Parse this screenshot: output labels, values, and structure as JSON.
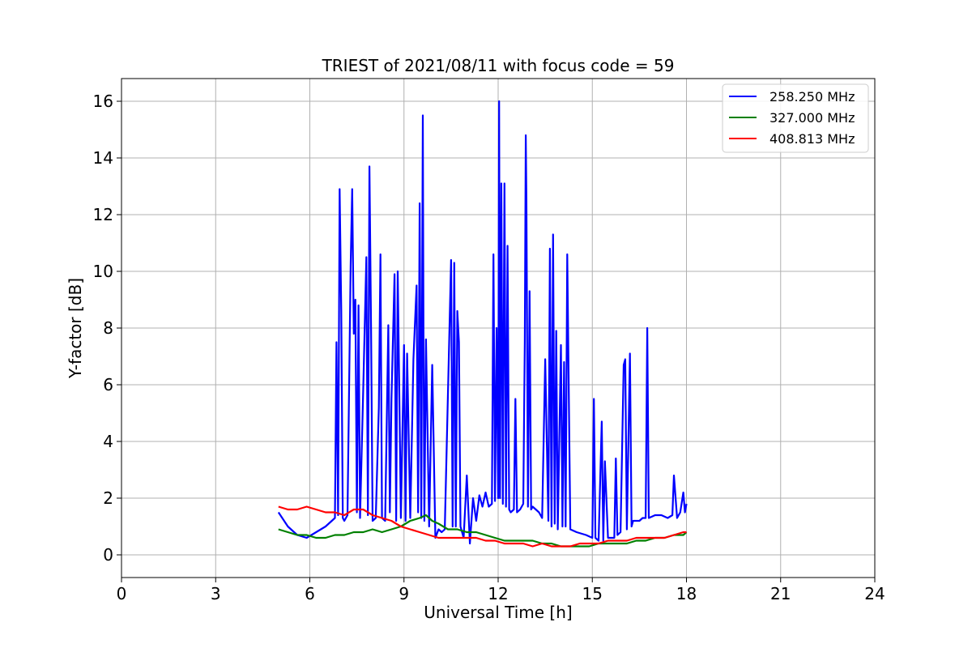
{
  "chart_data": {
    "type": "line",
    "title": "TRIEST of 2021/08/11 with focus code = 59",
    "xlabel": "Universal Time [h]",
    "ylabel": "Y-factor [dB]",
    "xlim": [
      0,
      24
    ],
    "ylim": [
      -0.8,
      16.8
    ],
    "xticks": [
      0,
      3,
      6,
      9,
      12,
      15,
      18,
      21,
      24
    ],
    "yticks": [
      0,
      2,
      4,
      6,
      8,
      10,
      12,
      14,
      16
    ],
    "grid": true,
    "legend_position": "top-right",
    "series": [
      {
        "name": "258.250 MHz",
        "color": "#0000ff",
        "x": [
          5.0,
          5.3,
          5.6,
          5.9,
          6.2,
          6.5,
          6.8,
          6.85,
          6.9,
          6.95,
          7.0,
          7.05,
          7.1,
          7.2,
          7.3,
          7.35,
          7.4,
          7.45,
          7.5,
          7.55,
          7.6,
          7.7,
          7.8,
          7.85,
          7.9,
          7.95,
          8.0,
          8.1,
          8.2,
          8.25,
          8.3,
          8.4,
          8.5,
          8.55,
          8.6,
          8.7,
          8.75,
          8.8,
          8.85,
          8.9,
          9.0,
          9.05,
          9.1,
          9.2,
          9.3,
          9.4,
          9.45,
          9.5,
          9.55,
          9.6,
          9.62,
          9.65,
          9.7,
          9.8,
          9.9,
          10.0,
          10.1,
          10.2,
          10.3,
          10.5,
          10.55,
          10.6,
          10.65,
          10.7,
          10.75,
          10.8,
          10.9,
          11.0,
          11.1,
          11.2,
          11.3,
          11.4,
          11.5,
          11.6,
          11.7,
          11.8,
          11.85,
          11.9,
          11.95,
          12.0,
          12.03,
          12.06,
          12.1,
          12.15,
          12.2,
          12.25,
          12.3,
          12.35,
          12.4,
          12.5,
          12.55,
          12.6,
          12.7,
          12.8,
          12.85,
          12.88,
          12.9,
          12.95,
          13.0,
          13.05,
          13.1,
          13.2,
          13.3,
          13.4,
          13.5,
          13.6,
          13.65,
          13.7,
          13.75,
          13.8,
          13.85,
          13.9,
          14.0,
          14.05,
          14.1,
          14.15,
          14.2,
          14.3,
          14.5,
          14.8,
          15.0,
          15.05,
          15.1,
          15.2,
          15.3,
          15.35,
          15.4,
          15.5,
          15.6,
          15.7,
          15.75,
          15.8,
          15.9,
          16.0,
          16.05,
          16.1,
          16.2,
          16.25,
          16.3,
          16.5,
          16.6,
          16.7,
          16.75,
          16.8,
          17.0,
          17.2,
          17.4,
          17.55,
          17.6,
          17.7,
          17.8,
          17.9,
          17.95,
          18.0
        ],
        "y": [
          1.5,
          1.0,
          0.7,
          0.6,
          0.8,
          1.0,
          1.3,
          7.5,
          1.4,
          12.9,
          8.6,
          1.3,
          1.2,
          1.4,
          10.2,
          12.9,
          7.8,
          9.0,
          1.5,
          8.8,
          1.3,
          5.8,
          10.5,
          1.4,
          13.7,
          8.0,
          1.2,
          1.3,
          5.2,
          10.6,
          1.3,
          1.2,
          8.1,
          1.5,
          5.5,
          9.9,
          1.2,
          10.0,
          5.9,
          1.3,
          7.4,
          1.2,
          7.1,
          1.3,
          6.9,
          9.5,
          1.5,
          12.4,
          1.3,
          15.5,
          8.0,
          1.2,
          7.6,
          1.0,
          6.7,
          0.6,
          0.9,
          0.8,
          0.9,
          10.4,
          1.0,
          10.3,
          1.0,
          8.6,
          7.5,
          1.0,
          0.6,
          2.8,
          0.4,
          2.0,
          1.2,
          2.1,
          1.7,
          2.2,
          1.7,
          1.8,
          10.6,
          1.9,
          8.0,
          2.0,
          16.0,
          2.0,
          13.1,
          1.8,
          13.1,
          1.7,
          10.9,
          1.6,
          1.5,
          1.6,
          5.5,
          1.5,
          1.6,
          1.8,
          7.5,
          14.8,
          12.5,
          1.7,
          9.3,
          1.6,
          1.7,
          1.6,
          1.5,
          1.3,
          6.9,
          1.2,
          10.8,
          1.0,
          11.3,
          1.1,
          7.9,
          0.9,
          7.4,
          1.0,
          6.8,
          1.0,
          10.6,
          0.9,
          0.8,
          0.7,
          0.6,
          5.5,
          0.6,
          0.5,
          4.7,
          0.5,
          3.3,
          0.6,
          0.6,
          0.6,
          3.4,
          0.7,
          0.8,
          6.7,
          6.9,
          0.9,
          7.1,
          1.0,
          1.2,
          1.2,
          1.3,
          1.3,
          8.0,
          1.3,
          1.4,
          1.4,
          1.3,
          1.4,
          2.8,
          1.3,
          1.5,
          2.2,
          1.5,
          1.8
        ]
      },
      {
        "name": "327.000 MHz",
        "color": "#008000",
        "x": [
          5.0,
          5.3,
          5.6,
          5.9,
          6.2,
          6.5,
          6.8,
          7.1,
          7.4,
          7.7,
          8.0,
          8.3,
          8.6,
          8.9,
          9.2,
          9.5,
          9.7,
          9.9,
          10.1,
          10.4,
          10.7,
          11.0,
          11.3,
          11.6,
          11.9,
          12.2,
          12.5,
          12.8,
          13.1,
          13.4,
          13.7,
          14.0,
          14.3,
          14.6,
          14.9,
          15.2,
          15.5,
          15.8,
          16.1,
          16.4,
          16.7,
          17.0,
          17.3,
          17.6,
          17.9,
          18.0
        ],
        "y": [
          0.9,
          0.8,
          0.7,
          0.7,
          0.6,
          0.6,
          0.7,
          0.7,
          0.8,
          0.8,
          0.9,
          0.8,
          0.9,
          1.0,
          1.2,
          1.3,
          1.4,
          1.2,
          1.1,
          0.9,
          0.9,
          0.8,
          0.8,
          0.7,
          0.6,
          0.5,
          0.5,
          0.5,
          0.5,
          0.4,
          0.4,
          0.3,
          0.3,
          0.3,
          0.3,
          0.4,
          0.4,
          0.4,
          0.4,
          0.5,
          0.5,
          0.6,
          0.6,
          0.7,
          0.7,
          0.8
        ]
      },
      {
        "name": "408.813 MHz",
        "color": "#ff0000",
        "x": [
          5.0,
          5.3,
          5.6,
          5.9,
          6.2,
          6.5,
          6.8,
          7.1,
          7.4,
          7.7,
          8.0,
          8.3,
          8.6,
          8.9,
          9.2,
          9.5,
          9.8,
          10.1,
          10.4,
          10.7,
          11.0,
          11.3,
          11.6,
          11.9,
          12.2,
          12.5,
          12.8,
          13.1,
          13.4,
          13.7,
          14.0,
          14.3,
          14.6,
          14.9,
          15.2,
          15.5,
          15.8,
          16.1,
          16.4,
          16.7,
          17.0,
          17.3,
          17.6,
          17.9,
          18.0
        ],
        "y": [
          1.7,
          1.6,
          1.6,
          1.7,
          1.6,
          1.5,
          1.5,
          1.4,
          1.6,
          1.6,
          1.4,
          1.3,
          1.2,
          1.0,
          0.9,
          0.8,
          0.7,
          0.6,
          0.6,
          0.6,
          0.6,
          0.6,
          0.5,
          0.5,
          0.4,
          0.4,
          0.4,
          0.3,
          0.4,
          0.3,
          0.3,
          0.3,
          0.4,
          0.4,
          0.4,
          0.5,
          0.5,
          0.5,
          0.6,
          0.6,
          0.6,
          0.6,
          0.7,
          0.8,
          0.8
        ]
      }
    ]
  }
}
